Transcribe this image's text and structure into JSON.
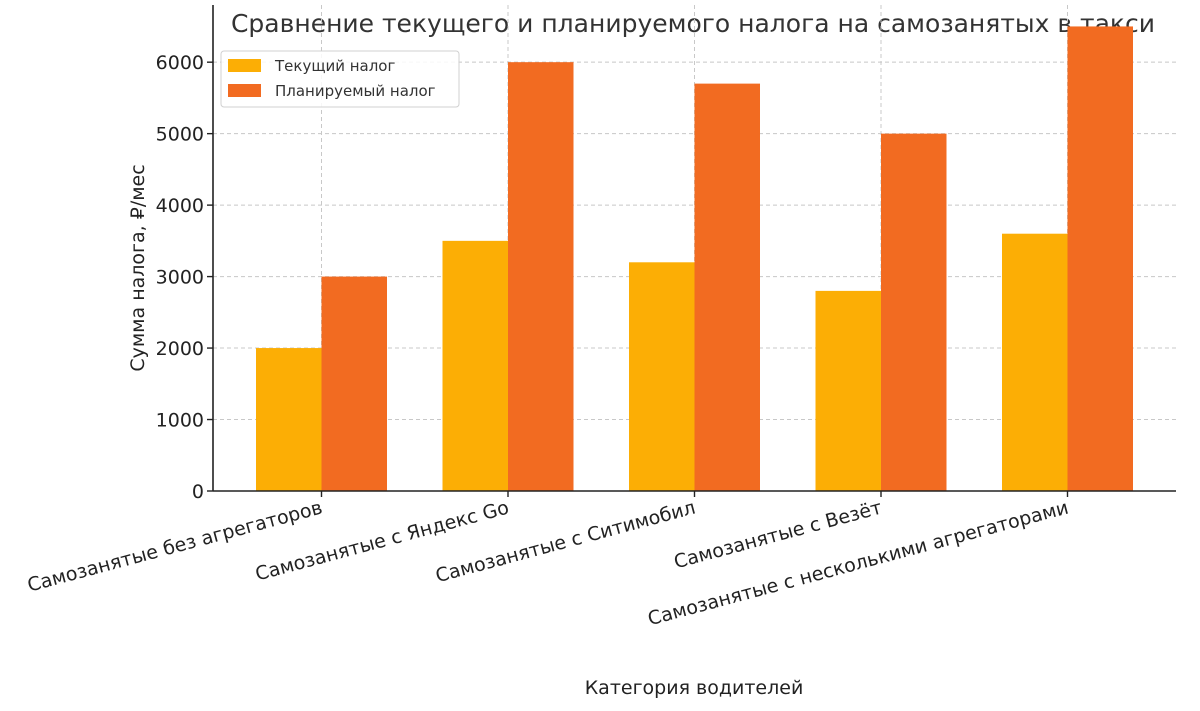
{
  "chart_data": {
    "type": "bar",
    "title": "Сравнение текущего и планируемого налога на самозанятых в такси",
    "xlabel": "Категория водителей",
    "ylabel": "Сумма налога, ₽/мес",
    "categories": [
      "Самозанятые без агрегаторов",
      "Самозанятые с Яндекс Go",
      "Самозанятые с Ситимобил",
      "Самозанятые с Везёт",
      "Самозанятые с несколькими агрегаторами"
    ],
    "series": [
      {
        "name": "Текущий налог",
        "color": "#FCAE05",
        "values": [
          2000,
          3500,
          3200,
          2800,
          3600
        ]
      },
      {
        "name": "Планируемый налог",
        "color": "#F26B21",
        "values": [
          3000,
          6000,
          5700,
          5000,
          6500
        ]
      }
    ],
    "ylim": [
      0,
      6800
    ],
    "yticks": [
      0,
      1000,
      2000,
      3000,
      4000,
      5000,
      6000
    ],
    "grid": true,
    "legend": "top-left"
  }
}
